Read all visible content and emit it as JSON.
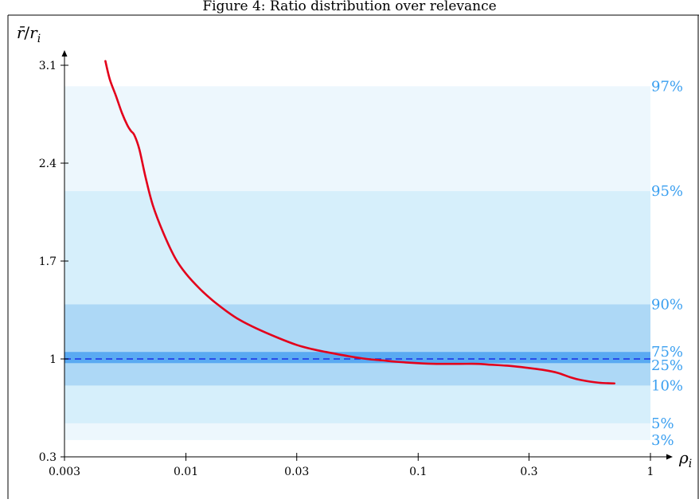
{
  "colors": {
    "band_outer": "#edf7fd",
    "band_mid": "#d6effb",
    "band_inner": "#add8f6",
    "band_core": "#5aaaf2",
    "percentile_text": "#3a9ff0",
    "curve": "#e3001b",
    "reference": "#1b2ee6",
    "axis": "#000000"
  },
  "chart_data": {
    "type": "line",
    "title": "Figure 4: Ratio distribution over relevance",
    "xlabel": "ρ",
    "xlabel_sub": "i",
    "ylabel_num": "r̄",
    "ylabel_den": "r",
    "ylabel_sub": "i",
    "xscale": "log",
    "xlim": [
      0.003,
      1
    ],
    "ylim": [
      0.3,
      3.1
    ],
    "grid": false,
    "x_ticks": [
      {
        "value": 0.003,
        "label": "0.003"
      },
      {
        "value": 0.01,
        "label": "0.01"
      },
      {
        "value": 0.03,
        "label": "0.03"
      },
      {
        "value": 0.1,
        "label": "0.1"
      },
      {
        "value": 0.3,
        "label": "0.3"
      },
      {
        "value": 1,
        "label": "1"
      }
    ],
    "y_ticks": [
      {
        "value": 0.3,
        "label": "0.3"
      },
      {
        "value": 1,
        "label": "1"
      },
      {
        "value": 1.7,
        "label": "1.7"
      },
      {
        "value": 2.4,
        "label": "2.4"
      },
      {
        "value": 3.1,
        "label": "3.1"
      }
    ],
    "reference_line": {
      "y": 1,
      "style": "dashed"
    },
    "percentile_bands": [
      {
        "low": 0.42,
        "high": 2.95,
        "low_label": "3%",
        "high_label": "97%",
        "tone": "outer"
      },
      {
        "low": 0.54,
        "high": 2.2,
        "low_label": "5%",
        "high_label": "95%",
        "tone": "mid"
      },
      {
        "low": 0.81,
        "high": 1.39,
        "low_label": "10%",
        "high_label": "90%",
        "tone": "inner"
      },
      {
        "low": 0.97,
        "high": 1.05,
        "low_label": "25%",
        "high_label": "75%",
        "tone": "core"
      }
    ],
    "series": [
      {
        "x": [
          0.0045,
          0.0047,
          0.005,
          0.0053,
          0.0056,
          0.0058,
          0.006,
          0.0063,
          0.0067,
          0.0072,
          0.008,
          0.009,
          0.01,
          0.0115,
          0.013,
          0.015,
          0.017,
          0.02,
          0.025,
          0.03,
          0.035,
          0.04,
          0.05,
          0.06,
          0.07,
          0.08,
          0.1,
          0.12,
          0.15,
          0.18,
          0.2,
          0.25,
          0.3,
          0.35,
          0.4,
          0.45,
          0.5,
          0.6,
          0.7
        ],
        "y": [
          3.13,
          3.0,
          2.88,
          2.76,
          2.67,
          2.63,
          2.6,
          2.5,
          2.3,
          2.1,
          1.9,
          1.72,
          1.61,
          1.5,
          1.42,
          1.34,
          1.28,
          1.22,
          1.15,
          1.1,
          1.07,
          1.05,
          1.02,
          1.0,
          0.99,
          0.98,
          0.97,
          0.965,
          0.965,
          0.965,
          0.96,
          0.95,
          0.935,
          0.92,
          0.9,
          0.87,
          0.85,
          0.83,
          0.825
        ]
      }
    ]
  }
}
